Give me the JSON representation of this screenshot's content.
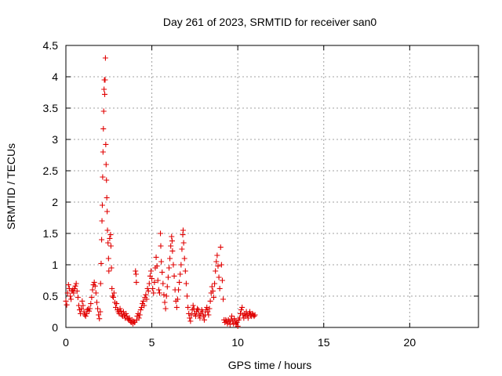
{
  "chart_data": {
    "type": "scatter",
    "title": "Day 261 of 2023, SRMTID for receiver san0",
    "xlabel": "GPS time / hours",
    "ylabel": "SRMTID / TECUs",
    "xlim": [
      0,
      24
    ],
    "ylim": [
      0,
      4.5
    ],
    "x_ticks": [
      0,
      5,
      10,
      15,
      20
    ],
    "y_ticks": [
      0,
      0.5,
      1,
      1.5,
      2,
      2.5,
      3,
      3.5,
      4,
      4.5
    ],
    "x_tick_labels": [
      "0",
      "5",
      "10",
      "15",
      "20"
    ],
    "y_tick_labels": [
      "0",
      "0.5",
      "1",
      "1.5",
      "2",
      "2.5",
      "3",
      "3.5",
      "4",
      "4.5"
    ],
    "grid": true,
    "marker": "+",
    "series": [
      {
        "name": "san0",
        "color": "#e00000",
        "points": [
          [
            0.0,
            0.42
          ],
          [
            0.05,
            0.36
          ],
          [
            0.1,
            0.55
          ],
          [
            0.15,
            0.68
          ],
          [
            0.2,
            0.62
          ],
          [
            0.25,
            0.5
          ],
          [
            0.3,
            0.45
          ],
          [
            0.35,
            0.58
          ],
          [
            0.4,
            0.6
          ],
          [
            0.45,
            0.55
          ],
          [
            0.5,
            0.62
          ],
          [
            0.55,
            0.66
          ],
          [
            0.6,
            0.7
          ],
          [
            0.65,
            0.58
          ],
          [
            0.7,
            0.48
          ],
          [
            0.75,
            0.35
          ],
          [
            0.8,
            0.28
          ],
          [
            0.85,
            0.22
          ],
          [
            0.9,
            0.3
          ],
          [
            0.95,
            0.42
          ],
          [
            1.0,
            0.35
          ],
          [
            1.05,
            0.25
          ],
          [
            1.1,
            0.2
          ],
          [
            1.15,
            0.18
          ],
          [
            1.2,
            0.22
          ],
          [
            1.25,
            0.28
          ],
          [
            1.3,
            0.3
          ],
          [
            1.35,
            0.26
          ],
          [
            1.4,
            0.3
          ],
          [
            1.45,
            0.38
          ],
          [
            1.5,
            0.48
          ],
          [
            1.55,
            0.6
          ],
          [
            1.6,
            0.68
          ],
          [
            1.65,
            0.72
          ],
          [
            1.7,
            0.66
          ],
          [
            1.75,
            0.55
          ],
          [
            1.8,
            0.4
          ],
          [
            1.85,
            0.3
          ],
          [
            1.9,
            0.2
          ],
          [
            1.95,
            0.14
          ],
          [
            2.0,
            0.25
          ],
          [
            2.02,
            0.7
          ],
          [
            2.05,
            1.02
          ],
          [
            2.08,
            1.4
          ],
          [
            2.1,
            1.7
          ],
          [
            2.12,
            1.95
          ],
          [
            2.14,
            2.4
          ],
          [
            2.16,
            2.8
          ],
          [
            2.18,
            3.17
          ],
          [
            2.2,
            3.45
          ],
          [
            2.22,
            3.8
          ],
          [
            2.24,
            3.95
          ],
          [
            2.26,
            3.72
          ],
          [
            2.28,
            3.95
          ],
          [
            2.3,
            4.3
          ],
          [
            2.32,
            2.92
          ],
          [
            2.34,
            2.6
          ],
          [
            2.36,
            2.35
          ],
          [
            2.38,
            2.07
          ],
          [
            2.4,
            1.85
          ],
          [
            2.42,
            1.55
          ],
          [
            2.45,
            1.35
          ],
          [
            2.48,
            1.1
          ],
          [
            2.5,
            0.9
          ],
          [
            2.55,
            1.42
          ],
          [
            2.6,
            1.48
          ],
          [
            2.62,
            1.3
          ],
          [
            2.65,
            0.95
          ],
          [
            2.68,
            0.62
          ],
          [
            2.72,
            0.5
          ],
          [
            2.76,
            0.48
          ],
          [
            2.8,
            0.55
          ],
          [
            2.85,
            0.4
          ],
          [
            2.9,
            0.32
          ],
          [
            2.95,
            0.38
          ],
          [
            3.0,
            0.28
          ],
          [
            3.05,
            0.25
          ],
          [
            3.1,
            0.22
          ],
          [
            3.15,
            0.3
          ],
          [
            3.2,
            0.26
          ],
          [
            3.25,
            0.2
          ],
          [
            3.3,
            0.18
          ],
          [
            3.35,
            0.25
          ],
          [
            3.4,
            0.2
          ],
          [
            3.45,
            0.15
          ],
          [
            3.5,
            0.22
          ],
          [
            3.55,
            0.18
          ],
          [
            3.6,
            0.14
          ],
          [
            3.65,
            0.12
          ],
          [
            3.7,
            0.15
          ],
          [
            3.75,
            0.1
          ],
          [
            3.8,
            0.08
          ],
          [
            3.85,
            0.12
          ],
          [
            3.9,
            0.06
          ],
          [
            3.95,
            0.1
          ],
          [
            4.0,
            0.08
          ],
          [
            4.05,
            0.9
          ],
          [
            4.08,
            0.85
          ],
          [
            4.1,
            0.72
          ],
          [
            4.12,
            0.12
          ],
          [
            4.15,
            0.18
          ],
          [
            4.2,
            0.22
          ],
          [
            4.25,
            0.15
          ],
          [
            4.3,
            0.2
          ],
          [
            4.35,
            0.28
          ],
          [
            4.4,
            0.32
          ],
          [
            4.45,
            0.38
          ],
          [
            4.5,
            0.42
          ],
          [
            4.55,
            0.35
          ],
          [
            4.6,
            0.48
          ],
          [
            4.65,
            0.52
          ],
          [
            4.7,
            0.45
          ],
          [
            4.75,
            0.62
          ],
          [
            4.8,
            0.58
          ],
          [
            4.85,
            0.7
          ],
          [
            4.9,
            0.82
          ],
          [
            4.95,
            0.9
          ],
          [
            5.0,
            0.78
          ],
          [
            5.05,
            0.62
          ],
          [
            5.1,
            0.55
          ],
          [
            5.15,
            0.72
          ],
          [
            5.2,
            0.95
          ],
          [
            5.25,
            1.12
          ],
          [
            5.3,
            0.98
          ],
          [
            5.35,
            0.75
          ],
          [
            5.4,
            0.6
          ],
          [
            5.45,
            0.55
          ],
          [
            5.5,
            1.5
          ],
          [
            5.52,
            1.3
          ],
          [
            5.55,
            1.05
          ],
          [
            5.6,
            0.88
          ],
          [
            5.65,
            0.7
          ],
          [
            5.7,
            0.52
          ],
          [
            5.75,
            0.4
          ],
          [
            5.8,
            0.3
          ],
          [
            5.85,
            0.5
          ],
          [
            5.9,
            0.65
          ],
          [
            5.95,
            0.8
          ],
          [
            6.0,
            0.95
          ],
          [
            6.05,
            1.1
          ],
          [
            6.1,
            1.3
          ],
          [
            6.15,
            1.45
          ],
          [
            6.18,
            1.38
          ],
          [
            6.2,
            1.22
          ],
          [
            6.25,
            1.0
          ],
          [
            6.3,
            0.82
          ],
          [
            6.35,
            0.6
          ],
          [
            6.4,
            0.42
          ],
          [
            6.45,
            0.32
          ],
          [
            6.5,
            0.45
          ],
          [
            6.55,
            0.6
          ],
          [
            6.6,
            0.72
          ],
          [
            6.65,
            0.85
          ],
          [
            6.7,
            1.0
          ],
          [
            6.75,
            1.25
          ],
          [
            6.8,
            1.48
          ],
          [
            6.82,
            1.55
          ],
          [
            6.85,
            1.35
          ],
          [
            6.9,
            1.1
          ],
          [
            6.95,
            0.9
          ],
          [
            7.0,
            0.7
          ],
          [
            7.05,
            0.5
          ],
          [
            7.1,
            0.32
          ],
          [
            7.15,
            0.22
          ],
          [
            7.2,
            0.15
          ],
          [
            7.25,
            0.1
          ],
          [
            7.3,
            0.2
          ],
          [
            7.35,
            0.28
          ],
          [
            7.4,
            0.35
          ],
          [
            7.45,
            0.3
          ],
          [
            7.5,
            0.22
          ],
          [
            7.55,
            0.18
          ],
          [
            7.6,
            0.25
          ],
          [
            7.65,
            0.3
          ],
          [
            7.7,
            0.28
          ],
          [
            7.75,
            0.2
          ],
          [
            7.8,
            0.15
          ],
          [
            7.85,
            0.22
          ],
          [
            7.9,
            0.28
          ],
          [
            7.95,
            0.25
          ],
          [
            8.0,
            0.18
          ],
          [
            8.05,
            0.12
          ],
          [
            8.1,
            0.2
          ],
          [
            8.15,
            0.28
          ],
          [
            8.2,
            0.32
          ],
          [
            8.25,
            0.25
          ],
          [
            8.3,
            0.2
          ],
          [
            8.35,
            0.3
          ],
          [
            8.4,
            0.42
          ],
          [
            8.45,
            0.55
          ],
          [
            8.5,
            0.65
          ],
          [
            8.55,
            0.58
          ],
          [
            8.6,
            0.48
          ],
          [
            8.65,
            0.7
          ],
          [
            8.7,
            0.9
          ],
          [
            8.75,
            1.05
          ],
          [
            8.8,
            1.15
          ],
          [
            8.85,
            0.98
          ],
          [
            8.9,
            0.8
          ],
          [
            8.95,
            0.62
          ],
          [
            9.0,
            1.28
          ],
          [
            9.05,
            1.0
          ],
          [
            9.1,
            0.75
          ],
          [
            9.15,
            0.45
          ],
          [
            9.2,
            0.12
          ],
          [
            9.25,
            0.08
          ],
          [
            9.3,
            0.12
          ],
          [
            9.35,
            0.1
          ],
          [
            9.4,
            0.06
          ],
          [
            9.45,
            0.12
          ],
          [
            9.5,
            0.1
          ],
          [
            9.55,
            0.05
          ],
          [
            9.6,
            0.12
          ],
          [
            9.65,
            0.18
          ],
          [
            9.7,
            0.1
          ],
          [
            9.75,
            0.06
          ],
          [
            9.8,
            0.14
          ],
          [
            9.85,
            0.1
          ],
          [
            9.9,
            0.05
          ],
          [
            9.95,
            0.08
          ],
          [
            10.0,
            0.02
          ],
          [
            10.05,
            0.12
          ],
          [
            10.1,
            0.15
          ],
          [
            10.15,
            0.22
          ],
          [
            10.2,
            0.28
          ],
          [
            10.25,
            0.32
          ],
          [
            10.3,
            0.2
          ],
          [
            10.35,
            0.15
          ],
          [
            10.4,
            0.22
          ],
          [
            10.45,
            0.18
          ],
          [
            10.5,
            0.25
          ],
          [
            10.55,
            0.2
          ],
          [
            10.6,
            0.15
          ],
          [
            10.65,
            0.22
          ],
          [
            10.7,
            0.25
          ],
          [
            10.75,
            0.2
          ],
          [
            10.8,
            0.18
          ],
          [
            10.85,
            0.22
          ],
          [
            10.9,
            0.2
          ],
          [
            10.95,
            0.18
          ],
          [
            11.0,
            0.2
          ]
        ]
      }
    ]
  }
}
